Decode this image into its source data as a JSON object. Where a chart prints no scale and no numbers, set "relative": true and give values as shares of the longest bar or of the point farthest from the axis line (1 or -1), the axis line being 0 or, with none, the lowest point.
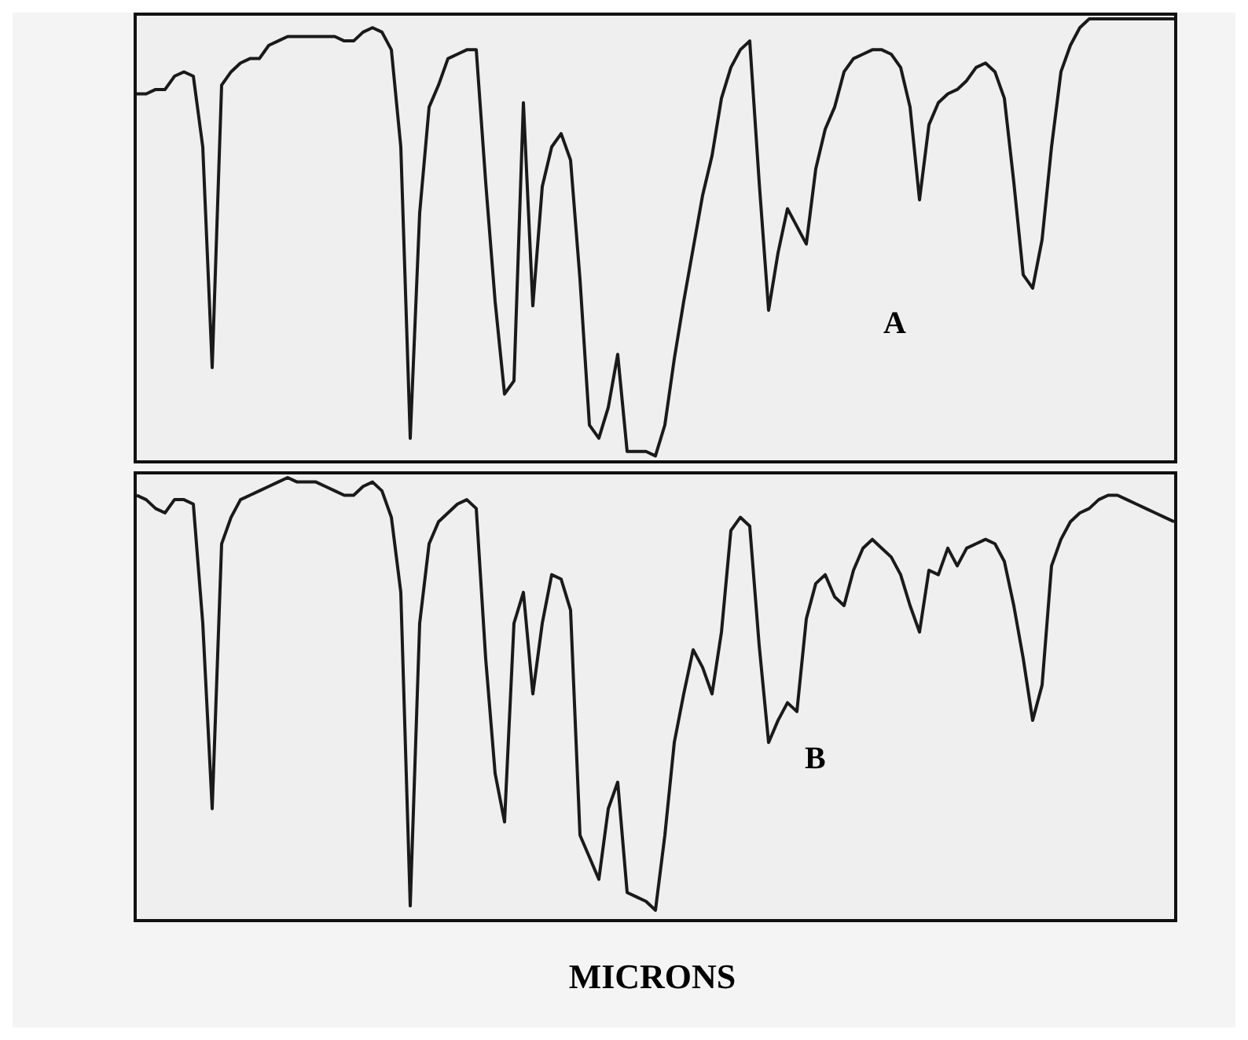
{
  "chart_data": [
    {
      "type": "line",
      "relative": true,
      "categories": [
        null,
        null,
        null,
        null,
        null,
        null,
        null,
        null,
        null,
        null,
        null,
        null,
        null,
        null,
        null,
        null,
        null,
        null,
        null,
        null,
        null,
        null,
        null,
        null,
        null,
        null,
        null,
        null,
        null,
        null,
        null,
        null,
        null,
        null,
        null,
        null,
        null,
        null,
        null,
        null,
        null,
        null,
        null,
        null,
        null,
        null,
        null,
        null,
        null,
        null,
        null,
        null,
        null,
        null,
        null,
        null,
        null,
        null,
        null,
        null,
        null,
        null,
        null,
        null,
        null,
        null,
        null,
        null,
        null,
        null,
        null,
        null,
        null,
        null,
        null,
        null,
        null,
        null,
        null,
        null,
        null,
        null,
        null,
        null,
        null,
        null,
        null,
        null,
        null,
        null,
        null,
        null,
        null,
        null,
        null,
        null,
        null,
        null,
        null,
        null,
        null,
        null,
        null,
        null,
        null,
        null,
        null,
        null,
        null,
        null,
        null
      ],
      "series": [
        {
          "color": "#1a1a1a",
          "values": [
            0.83,
            0.83,
            0.84,
            0.84,
            0.87,
            0.88,
            0.87,
            0.71,
            0.21,
            0.85,
            0.88,
            0.9,
            0.91,
            0.91,
            0.94,
            0.95,
            0.96,
            0.96,
            0.96,
            0.96,
            0.96,
            0.96,
            0.95,
            0.95,
            0.97,
            0.98,
            0.97,
            0.93,
            0.71,
            0.05,
            0.56,
            0.8,
            0.85,
            0.91,
            0.92,
            0.93,
            0.93,
            0.63,
            0.36,
            0.15,
            0.18,
            0.81,
            0.35,
            0.62,
            0.71,
            0.74,
            0.68,
            0.41,
            0.08,
            0.05,
            0.12,
            0.24,
            0.02,
            0.02,
            0.02,
            0.01,
            0.08,
            0.23,
            0.36,
            0.48,
            0.6,
            0.69,
            0.82,
            0.89,
            0.93,
            0.95,
            0.63,
            0.34,
            0.47,
            0.57,
            0.53,
            0.49,
            0.66,
            0.75,
            0.8,
            0.88,
            0.91,
            0.92,
            0.93,
            0.93,
            0.92,
            0.89,
            0.8,
            0.59,
            0.76,
            0.81,
            0.83,
            0.84,
            0.86,
            0.89,
            0.9,
            0.88,
            0.82,
            0.63,
            0.42,
            0.39,
            0.5,
            0.71,
            0.88,
            0.94,
            0.98,
            1.0,
            1.0,
            1.0,
            1.0,
            1.0,
            1.0,
            1.0,
            1.0,
            1.0,
            1.0
          ]
        }
      ],
      "annotations": [
        "A"
      ]
    },
    {
      "type": "line",
      "relative": true,
      "xlabel": "MICRONS",
      "categories": [
        null,
        null,
        null,
        null,
        null,
        null,
        null,
        null,
        null,
        null,
        null,
        null,
        null,
        null,
        null,
        null,
        null,
        null,
        null,
        null,
        null,
        null,
        null,
        null,
        null,
        null,
        null,
        null,
        null,
        null,
        null,
        null,
        null,
        null,
        null,
        null,
        null,
        null,
        null,
        null,
        null,
        null,
        null,
        null,
        null,
        null,
        null,
        null,
        null,
        null,
        null,
        null,
        null,
        null,
        null,
        null,
        null,
        null,
        null,
        null,
        null,
        null,
        null,
        null,
        null,
        null,
        null,
        null,
        null,
        null,
        null,
        null,
        null,
        null,
        null,
        null,
        null,
        null,
        null,
        null,
        null,
        null,
        null,
        null,
        null,
        null,
        null,
        null,
        null,
        null,
        null,
        null,
        null,
        null,
        null,
        null,
        null,
        null,
        null,
        null,
        null,
        null,
        null,
        null,
        null,
        null,
        null,
        null,
        null,
        null,
        null
      ],
      "series": [
        {
          "color": "#1a1a1a",
          "values": [
            0.96,
            0.95,
            0.93,
            0.92,
            0.95,
            0.95,
            0.94,
            0.67,
            0.25,
            0.85,
            0.91,
            0.95,
            0.96,
            0.97,
            0.98,
            0.99,
            1.0,
            0.99,
            0.99,
            0.99,
            0.98,
            0.97,
            0.96,
            0.96,
            0.98,
            0.99,
            0.97,
            0.91,
            0.74,
            0.03,
            0.67,
            0.85,
            0.9,
            0.92,
            0.94,
            0.95,
            0.93,
            0.59,
            0.33,
            0.22,
            0.67,
            0.74,
            0.51,
            0.67,
            0.78,
            0.77,
            0.7,
            0.19,
            0.14,
            0.09,
            0.25,
            0.31,
            0.06,
            0.05,
            0.04,
            0.02,
            0.19,
            0.4,
            0.51,
            0.61,
            0.57,
            0.51,
            0.65,
            0.88,
            0.91,
            0.89,
            0.62,
            0.4,
            0.45,
            0.49,
            0.47,
            0.68,
            0.76,
            0.78,
            0.73,
            0.71,
            0.79,
            0.84,
            0.86,
            0.84,
            0.82,
            0.78,
            0.71,
            0.65,
            0.79,
            0.78,
            0.84,
            0.8,
            0.84,
            0.85,
            0.86,
            0.85,
            0.81,
            0.71,
            0.59,
            0.45,
            0.53,
            0.8,
            0.86,
            0.9,
            0.92,
            0.93,
            0.95,
            0.96,
            0.96,
            0.95,
            0.94,
            0.93,
            0.92,
            0.91,
            0.9
          ]
        }
      ],
      "annotations": [
        "B"
      ]
    }
  ]
}
